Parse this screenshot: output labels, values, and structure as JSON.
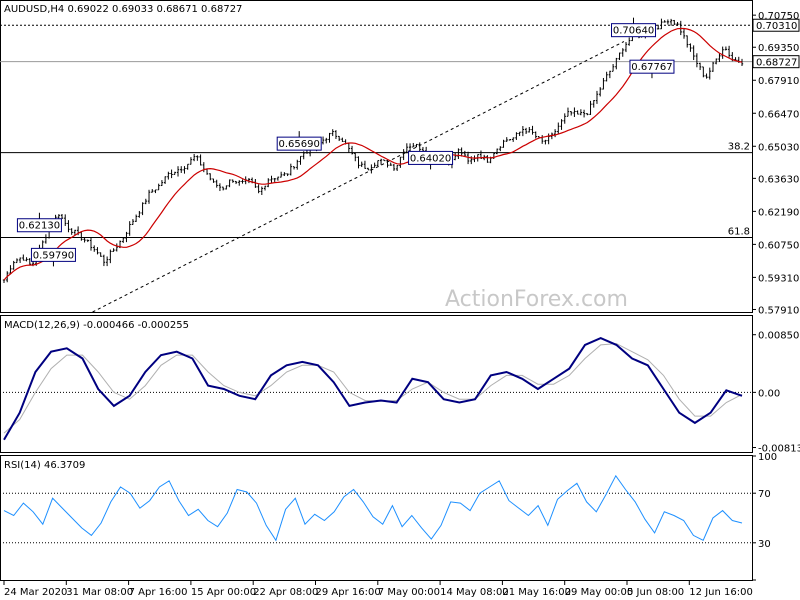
{
  "chart_data": {
    "type": "candlestick",
    "main": {
      "header": "AUDUSD,H4  0.69022 0.69033 0.68671 0.68727",
      "ylim": [
        0.578,
        0.708
      ],
      "ticks": [
        "0.70750",
        "0.69350",
        "0.67910",
        "0.66470",
        "0.65030",
        "0.63630",
        "0.62190",
        "0.60750",
        "0.59310",
        "0.57910"
      ],
      "last_price": "0.68727",
      "hlines": [
        {
          "value": 0.7031,
          "label": "0.70310",
          "style": "dotted"
        },
        {
          "value": 0.6872,
          "label": "",
          "style": "solid-grey"
        },
        {
          "value": 0.6475,
          "label": "38.2",
          "style": "solid"
        },
        {
          "value": 0.6105,
          "label": "61.8",
          "style": "solid"
        }
      ],
      "trendline": {
        "x": [
          0.12,
          0.84
        ],
        "y": [
          0.578,
          0.696
        ]
      },
      "annotations": [
        {
          "text": "0.70640",
          "x": 0.853,
          "y": 0.7064,
          "anchor": "below"
        },
        {
          "text": "0.67767",
          "x": 0.878,
          "y": 0.68,
          "anchor": "above"
        },
        {
          "text": "0.65690",
          "x": 0.4,
          "y": 0.6569,
          "anchor": "below"
        },
        {
          "text": "0.64020",
          "x": 0.578,
          "y": 0.6402,
          "anchor": "above"
        },
        {
          "text": "0.62130",
          "x": 0.048,
          "y": 0.6213,
          "anchor": "below"
        },
        {
          "text": "0.59790",
          "x": 0.067,
          "y": 0.5979,
          "anchor": "above"
        }
      ],
      "close": [
        0.592,
        0.6,
        0.602,
        0.598,
        0.606,
        0.615,
        0.621,
        0.615,
        0.612,
        0.609,
        0.605,
        0.6,
        0.605,
        0.61,
        0.617,
        0.623,
        0.63,
        0.633,
        0.638,
        0.64,
        0.642,
        0.646,
        0.64,
        0.634,
        0.632,
        0.636,
        0.634,
        0.635,
        0.63,
        0.636,
        0.637,
        0.638,
        0.643,
        0.648,
        0.649,
        0.653,
        0.656,
        0.654,
        0.648,
        0.642,
        0.641,
        0.644,
        0.643,
        0.641,
        0.65,
        0.651,
        0.649,
        0.644,
        0.646,
        0.643,
        0.649,
        0.643,
        0.647,
        0.644,
        0.649,
        0.653,
        0.654,
        0.658,
        0.656,
        0.652,
        0.654,
        0.66,
        0.665,
        0.664,
        0.665,
        0.672,
        0.68,
        0.686,
        0.694,
        0.698,
        0.699,
        0.701,
        0.703,
        0.706,
        0.703,
        0.695,
        0.687,
        0.68,
        0.687,
        0.694,
        0.688,
        0.6873
      ]
    },
    "macd": {
      "header": "MACD(12,26,9) -0.000466 -0.000255",
      "ylim": [
        -0.0085,
        0.0092
      ],
      "ticks": [
        "0.008506",
        "0.00",
        "-0.008134"
      ],
      "main": [
        -0.007,
        -0.003,
        0.003,
        0.006,
        0.0065,
        0.005,
        0.0005,
        -0.002,
        -0.0005,
        0.003,
        0.0055,
        0.006,
        0.005,
        0.001,
        0.0005,
        -0.0005,
        -0.001,
        0.0025,
        0.004,
        0.0045,
        0.004,
        0.0015,
        -0.002,
        -0.0015,
        -0.0012,
        -0.0015,
        0.002,
        0.0015,
        -0.001,
        -0.0015,
        -0.001,
        0.0025,
        0.003,
        0.002,
        0.0005,
        0.002,
        0.0035,
        0.007,
        0.008,
        0.007,
        0.005,
        0.004,
        0.0005,
        -0.003,
        -0.0045,
        -0.003,
        0.0003,
        -0.0005
      ],
      "signal": [
        -0.006,
        -0.004,
        0.0,
        0.0035,
        0.0055,
        0.0055,
        0.003,
        0.0,
        -0.001,
        0.001,
        0.004,
        0.0055,
        0.0055,
        0.003,
        0.001,
        0.0,
        -0.0005,
        0.001,
        0.003,
        0.004,
        0.004,
        0.003,
        0.0,
        -0.0012,
        -0.0013,
        -0.0012,
        0.0005,
        0.0015,
        0.0,
        -0.001,
        -0.001,
        0.001,
        0.0025,
        0.0025,
        0.0012,
        0.0012,
        0.0025,
        0.005,
        0.007,
        0.0072,
        0.006,
        0.0048,
        0.0025,
        -0.001,
        -0.0035,
        -0.0035,
        -0.0015,
        -0.0003
      ]
    },
    "rsi": {
      "header": "RSI(14) 46.3709",
      "ylim": [
        0,
        100
      ],
      "ticks": [
        "100",
        "70",
        "30",
        "0"
      ],
      "levels": [
        70,
        30
      ],
      "values": [
        56,
        52,
        62,
        55,
        45,
        66,
        58,
        50,
        42,
        36,
        46,
        63,
        75,
        70,
        58,
        64,
        75,
        80,
        64,
        52,
        57,
        48,
        43,
        54,
        73,
        71,
        62,
        44,
        32,
        57,
        66,
        45,
        53,
        48,
        55,
        67,
        73,
        63,
        51,
        45,
        60,
        43,
        52,
        42,
        33,
        44,
        63,
        62,
        56,
        70,
        75,
        80,
        64,
        58,
        52,
        60,
        44,
        65,
        72,
        78,
        63,
        55,
        69,
        84,
        73,
        63,
        49,
        38,
        55,
        52,
        48,
        36,
        32,
        50,
        56,
        48,
        46
      ]
    },
    "x_labels": [
      "24 Mar 2020",
      "31 Mar 08:00",
      "7 Apr 16:00",
      "15 Apr 00:00",
      "22 Apr 08:00",
      "29 Apr 16:00",
      "7 May 00:00",
      "14 May 08:00",
      "21 May 16:00",
      "29 May 00:00",
      "5 Jun 08:00",
      "12 Jun 16:00"
    ],
    "watermark": "ActionForex.com",
    "colors": {
      "candles": "#000000",
      "ma": "#cc0000",
      "macd": "#000080",
      "signal": "#b0b0b0",
      "rsi": "#1e90ff",
      "grid": "#000000"
    }
  }
}
